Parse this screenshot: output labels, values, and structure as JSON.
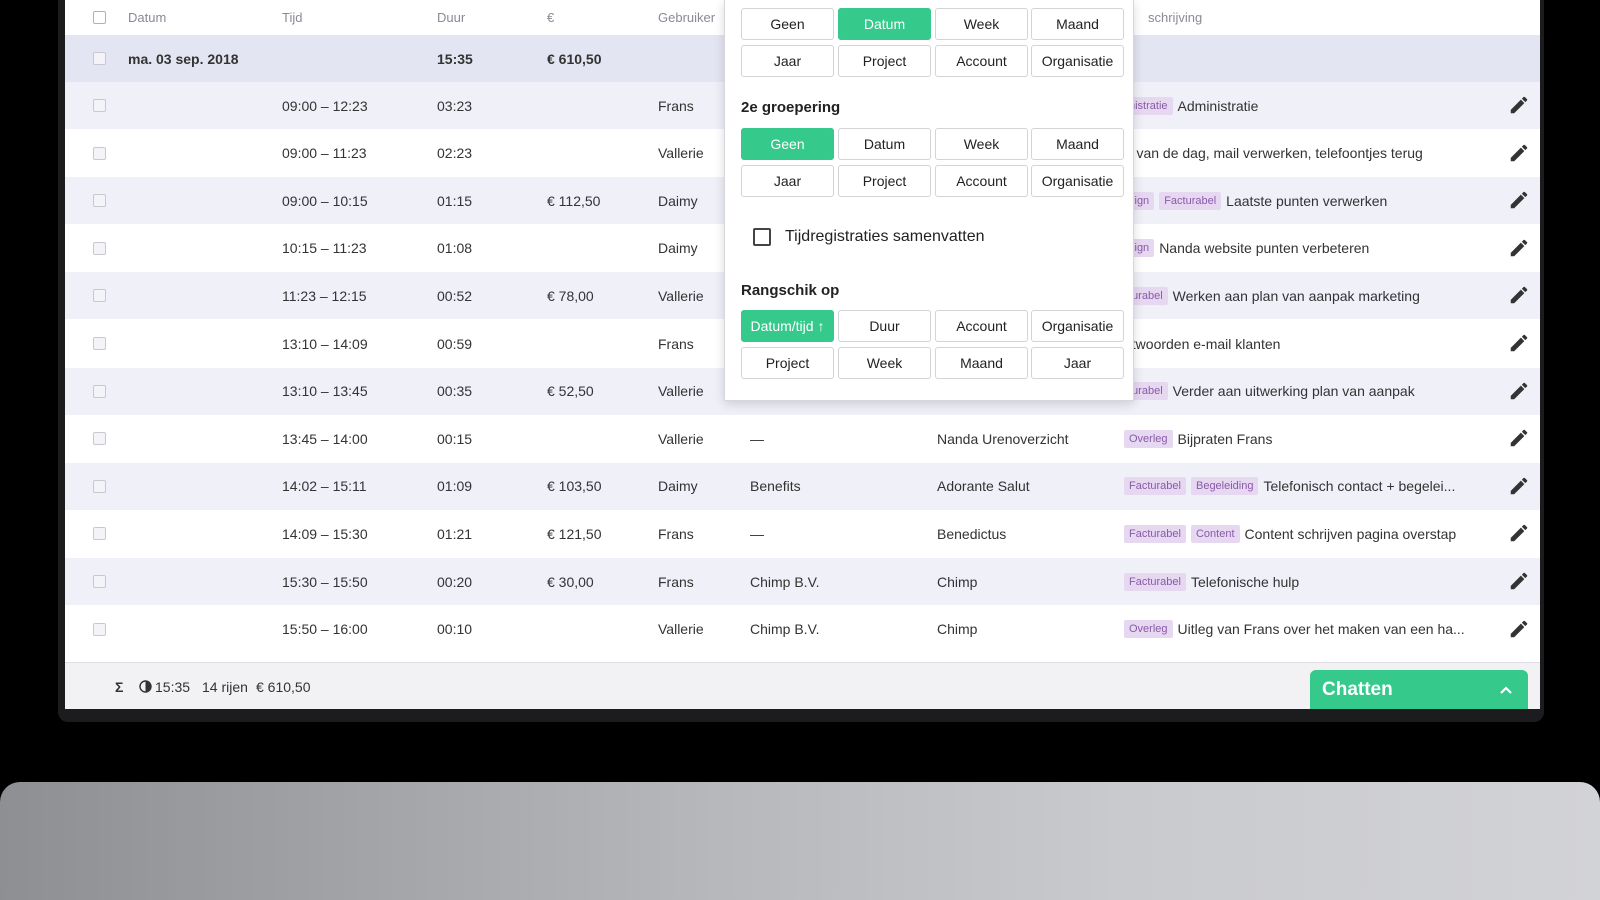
{
  "header": {
    "datum": "Datum",
    "tijd": "Tijd",
    "duur": "Duur",
    "euro": "€",
    "gebruiker": "Gebruiker",
    "omschrijving": "schrijving"
  },
  "group": {
    "date": "ma. 03 sep. 2018",
    "duration": "15:35",
    "amount": "€ 610,50"
  },
  "rows": [
    {
      "time": "09:00 – 12:23",
      "dur": "03:23",
      "amount": "",
      "user": "Frans",
      "project": "",
      "account": "",
      "tags": [
        "nistratie"
      ],
      "desc": "Administratie"
    },
    {
      "time": "09:00 – 11:23",
      "dur": "02:23",
      "amount": "",
      "user": "Vallerie",
      "project": "",
      "account": "",
      "tags": [],
      "desc": "rt van de dag, mail verwerken, telefoontjes terug"
    },
    {
      "time": "09:00 – 10:15",
      "dur": "01:15",
      "amount": "€ 112,50",
      "user": "Daimy",
      "project": "",
      "account": "",
      "tags": [
        "sign",
        "Facturabel"
      ],
      "desc": "Laatste punten verwerken"
    },
    {
      "time": "10:15 – 11:23",
      "dur": "01:08",
      "amount": "",
      "user": "Daimy",
      "project": "",
      "account": "",
      "tags": [
        "sign"
      ],
      "desc": "Nanda website punten verbeteren"
    },
    {
      "time": "11:23 – 12:15",
      "dur": "00:52",
      "amount": "€ 78,00",
      "user": "Vallerie",
      "project": "",
      "account": "",
      "tags": [
        "turabel"
      ],
      "desc": "Werken aan plan van aanpak marketing"
    },
    {
      "time": "13:10 – 14:09",
      "dur": "00:59",
      "amount": "",
      "user": "Frans",
      "project": "",
      "account": "",
      "tags": [],
      "desc": "ntwoorden e-mail klanten"
    },
    {
      "time": "13:10 – 13:45",
      "dur": "00:35",
      "amount": "€ 52,50",
      "user": "Vallerie",
      "project": "",
      "account": "",
      "tags": [
        "turabel"
      ],
      "desc": "Verder aan uitwerking plan van aanpak"
    },
    {
      "time": "13:45 – 14:00",
      "dur": "00:15",
      "amount": "",
      "user": "Vallerie",
      "project": "—",
      "account": "Nanda Urenoverzicht",
      "tags": [
        "Overleg"
      ],
      "desc": "Bijpraten Frans"
    },
    {
      "time": "14:02 – 15:11",
      "dur": "01:09",
      "amount": "€ 103,50",
      "user": "Daimy",
      "project": "Benefits",
      "account": "Adorante Salut",
      "tags": [
        "Facturabel",
        "Begeleiding"
      ],
      "desc": "Telefonisch contact + begelei..."
    },
    {
      "time": "14:09 – 15:30",
      "dur": "01:21",
      "amount": "€ 121,50",
      "user": "Frans",
      "project": "—",
      "account": "Benedictus",
      "tags": [
        "Facturabel",
        "Content"
      ],
      "desc": "Content schrijven pagina overstap"
    },
    {
      "time": "15:30 – 15:50",
      "dur": "00:20",
      "amount": "€ 30,00",
      "user": "Frans",
      "project": "Chimp B.V.",
      "account": "Chimp",
      "tags": [
        "Facturabel"
      ],
      "desc": "Telefonische hulp"
    },
    {
      "time": "15:50 – 16:00",
      "dur": "00:10",
      "amount": "",
      "user": "Vallerie",
      "project": "Chimp B.V.",
      "account": "Chimp",
      "tags": [
        "Overleg"
      ],
      "desc": "Uitleg van Frans over het maken van een ha..."
    }
  ],
  "popup": {
    "group1_buttons": [
      "Geen",
      "Datum",
      "Week",
      "Maand",
      "Jaar",
      "Project",
      "Account",
      "Organisatie"
    ],
    "group1_active": "Datum",
    "group2_title": "2e groepering",
    "group2_buttons": [
      "Geen",
      "Datum",
      "Week",
      "Maand",
      "Jaar",
      "Project",
      "Account",
      "Organisatie"
    ],
    "group2_active": "Geen",
    "summarize_label": "Tijdregistraties samenvatten",
    "sort_title": "Rangschik op",
    "sort_buttons": [
      "Datum/tijd ↑",
      "Duur",
      "Account",
      "Organisatie",
      "Project",
      "Week",
      "Maand",
      "Jaar"
    ],
    "sort_active": "Datum/tijd ↑"
  },
  "footer": {
    "sigma": "Σ",
    "duration": "15:35",
    "rows": "14 rijen",
    "amount": "€ 610,50"
  },
  "chat": {
    "label": "Chatten"
  },
  "colors": {
    "accent": "#35c98b",
    "tag_bg": "#e7d8f1",
    "tag_fg": "#8a5aa8",
    "row_alt": "#eff0f8"
  }
}
